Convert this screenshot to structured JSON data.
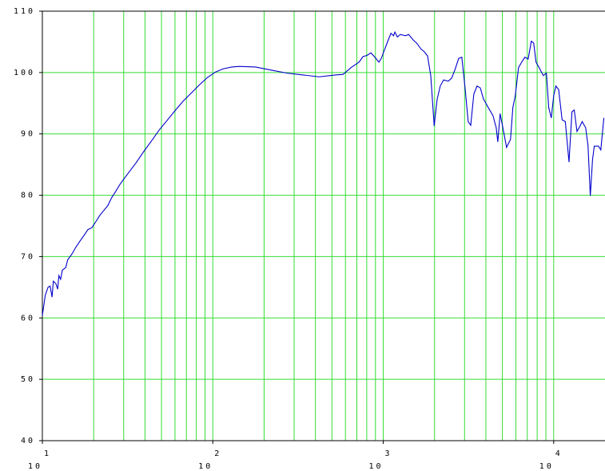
{
  "chart_data": {
    "type": "line",
    "x_scale": "log",
    "grid": true,
    "grid_color": "#33dd33",
    "xlim": [
      10,
      20000
    ],
    "ylim": [
      40,
      110
    ],
    "xticks": [
      {
        "value": 10,
        "label": "10",
        "exponent": "1"
      },
      {
        "value": 100,
        "label": "10",
        "exponent": "2"
      },
      {
        "value": 1000,
        "label": "10",
        "exponent": "3"
      },
      {
        "value": 10000,
        "label": "10",
        "exponent": "4"
      }
    ],
    "xgrid_minor": [
      20,
      30,
      40,
      50,
      60,
      70,
      80,
      90,
      200,
      300,
      400,
      500,
      600,
      700,
      800,
      900,
      2000,
      3000,
      4000,
      5000,
      6000,
      7000,
      8000,
      9000
    ],
    "yticks": [
      40,
      50,
      60,
      70,
      80,
      90,
      100,
      110
    ],
    "x": [
      10,
      10.4,
      10.8,
      11.1,
      11.4,
      11.6,
      12.0,
      12.3,
      12.5,
      12.8,
      13.1,
      13.7,
      14.1,
      14.9,
      15.7,
      16.6,
      17.5,
      18.5,
      19.5,
      20.6,
      21.7,
      22.9,
      24.2,
      25.5,
      26.9,
      28.4,
      30.0,
      31.7,
      35.3,
      39.3,
      43.8,
      48.7,
      54.3,
      60.5,
      67.3,
      75.0,
      83.5,
      93.0,
      104,
      115,
      129,
      143,
      178,
      220,
      273,
      339,
      421,
      522,
      581,
      647,
      721,
      761,
      803,
      847,
      893,
      943,
      974,
      1020,
      1070,
      1110,
      1150,
      1170,
      1210,
      1260,
      1350,
      1410,
      1500,
      1570,
      1670,
      1740,
      1820,
      1900,
      1990,
      2070,
      2160,
      2260,
      2410,
      2520,
      2630,
      2770,
      2890,
      3020,
      3150,
      3260,
      3400,
      3550,
      3710,
      3870,
      4130,
      4400,
      4600,
      4700,
      4850,
      5010,
      5290,
      5580,
      5760,
      5950,
      6220,
      6490,
      6780,
      7080,
      7390,
      7630,
      7880,
      8320,
      8690,
      9060,
      9350,
      9680,
      10000,
      10300,
      10700,
      11200,
      11700,
      12300,
      12800,
      13200,
      13700,
      14100,
      14700,
      15400,
      15900,
      16400,
      16900,
      17300,
      18300,
      18900,
      19700
    ],
    "series": [
      {
        "color": "#0000cc",
        "values": [
          60.4,
          63.7,
          65.0,
          65.2,
          63.4,
          66.0,
          65.6,
          64.7,
          66.9,
          66.3,
          67.8,
          68.2,
          69.5,
          70.4,
          71.5,
          72.5,
          73.4,
          74.4,
          74.7,
          75.7,
          76.7,
          77.5,
          78.3,
          79.6,
          80.6,
          81.7,
          82.6,
          83.5,
          85.2,
          87.1,
          88.9,
          90.7,
          92.3,
          93.9,
          95.4,
          96.7,
          98.0,
          99.2,
          100.1,
          100.6,
          100.9,
          101.0,
          100.9,
          100.4,
          99.9,
          99.6,
          99.3,
          99.6,
          99.7,
          100.8,
          101.7,
          102.6,
          102.8,
          103.2,
          102.5,
          101.7,
          102.3,
          103.8,
          105.3,
          106.4,
          106.0,
          106.6,
          105.8,
          106.2,
          106.0,
          106.2,
          105.3,
          104.8,
          103.8,
          103.4,
          102.7,
          99.5,
          91.3,
          95.6,
          97.8,
          98.8,
          98.6,
          99.1,
          100.4,
          102.3,
          102.5,
          97.5,
          92.0,
          91.4,
          96.5,
          97.8,
          97.5,
          95.7,
          94.3,
          93.0,
          91.0,
          88.7,
          93.3,
          91.3,
          87.8,
          89.1,
          94.3,
          96.2,
          100.8,
          101.7,
          102.5,
          102.2,
          105.1,
          104.8,
          101.7,
          100.5,
          99.5,
          99.9,
          94.3,
          92.6,
          96.2,
          97.8,
          97.2,
          92.3,
          92.0,
          85.4,
          93.6,
          93.9,
          90.4,
          91.0,
          92.0,
          91.0,
          88.1,
          79.9,
          85.8,
          88.0,
          88.0,
          87.4,
          92.6
        ]
      }
    ]
  }
}
